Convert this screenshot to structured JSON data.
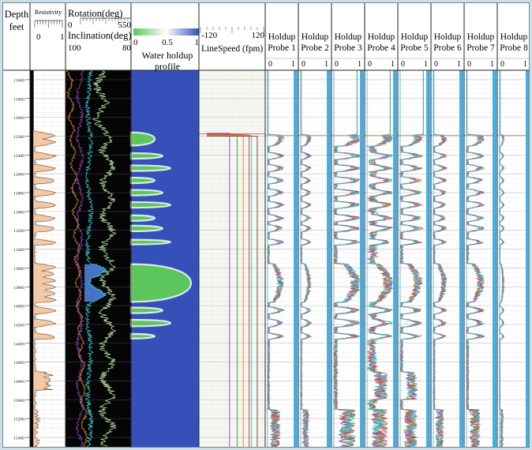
{
  "headers": {
    "depth_title": "Depth",
    "depth_unit": "feet",
    "resistivity_title": "Resistivity",
    "resistivity_min": "0",
    "resistivity_max": "1",
    "rotation_title": "Rotation(deg)",
    "rotation_min": "0",
    "rotation_max": "550",
    "inclination_title": "Inclination(deg)",
    "inclination_min": "100",
    "inclination_max": "80",
    "water_min": "0",
    "water_mid": "0.5",
    "water_max": "1",
    "water_title_line1": "Water holdup",
    "water_title_line2": "profile",
    "linespeed_min": "-120",
    "linespeed_max": "120",
    "linespeed_title": "LineSpeed (fpm)",
    "probe_word": "Holdup",
    "probe_labels": [
      "Probe 1",
      "Probe 2",
      "Probe 3",
      "Probe 4",
      "Probe 5",
      "Probe 6",
      "Probe 7",
      "Probe 8"
    ],
    "probe_min": "0",
    "probe_max": "1"
  },
  "colors": {
    "frame_bg": "#cfdde6",
    "water_deep": "#3550b8",
    "water_green": "#5cc65c",
    "resistivity_fill": "#f2c9a6",
    "probe_band": "#46aee0",
    "curve_green": "#38a838",
    "curve_orange": "#e08a2c",
    "curve_purple": "#9a4ac8",
    "curve_red": "#d43a3a",
    "curve_cyan": "#34c8d8",
    "incl_fill": "#4f7fd8"
  },
  "chart_data": {
    "type": "line",
    "title": "",
    "depth_axis": {
      "label": "Depth feet",
      "min": 11500,
      "max": 15500,
      "tick_labels": [
        "11600",
        "11800",
        "12000",
        "12200",
        "12400",
        "12600",
        "12800",
        "13000",
        "13200",
        "13400",
        "13600",
        "13800",
        "14000",
        "14200",
        "14400",
        "14600",
        "14800",
        "15000",
        "15200",
        "15400"
      ],
      "grid": true
    },
    "zones": [
      {
        "top": 12160,
        "bottom": 12300
      },
      {
        "top": 12380,
        "bottom": 12440
      },
      {
        "top": 12510,
        "bottom": 12570
      },
      {
        "top": 12640,
        "bottom": 12700
      },
      {
        "top": 12770,
        "bottom": 12830
      },
      {
        "top": 12900,
        "bottom": 12960
      },
      {
        "top": 13040,
        "bottom": 13100
      },
      {
        "top": 13150,
        "bottom": 13210
      },
      {
        "top": 13300,
        "bottom": 13350
      },
      {
        "top": 13560,
        "bottom": 13960
      },
      {
        "top": 14020,
        "bottom": 14080
      },
      {
        "top": 14150,
        "bottom": 14220
      },
      {
        "top": 14300,
        "bottom": 14350
      }
    ],
    "linespeed": {
      "depth_top": 12170,
      "depth_bottom": 15500,
      "passes_fpm": [
        -10,
        20,
        40,
        60,
        70,
        90
      ]
    },
    "probes": [
      "Probe 1",
      "Probe 2",
      "Probe 3",
      "Probe 4",
      "Probe 5",
      "Probe 6",
      "Probe 7",
      "Probe 8"
    ],
    "probe_activity": [
      0.55,
      0.35,
      0.95,
      0.9,
      0.75,
      0.45,
      0.6,
      0.15
    ],
    "probe_response_depth": 12190
  }
}
